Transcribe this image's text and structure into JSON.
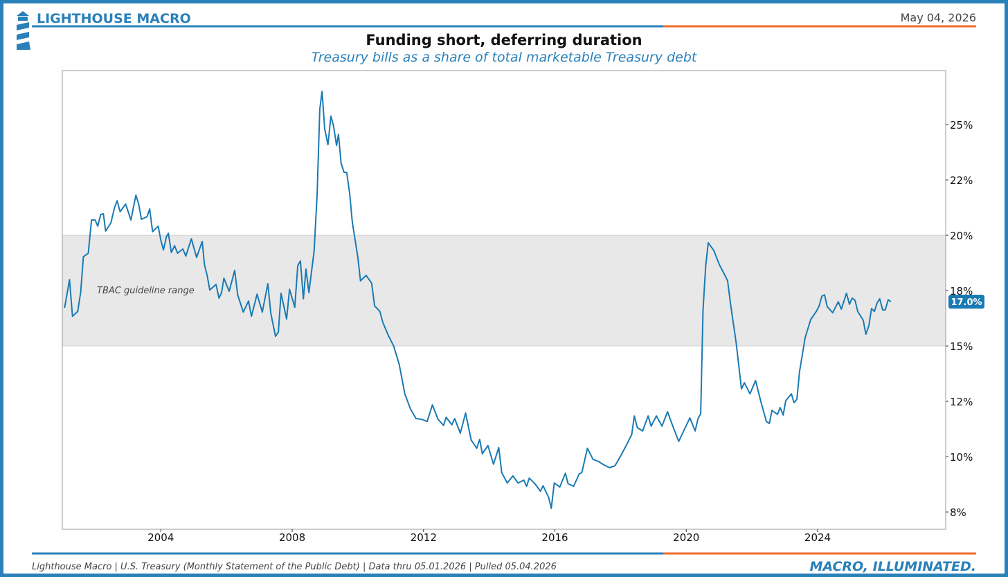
{
  "header": {
    "brand": "LIGHTHOUSE MACRO",
    "date": "May 04, 2026"
  },
  "footer": {
    "source": "Lighthouse Macro | U.S. Treasury (Monthly Statement of the Public Debt) | Data thru 05.01.2026 | Pulled 05.04.2026",
    "tagline": "MACRO, ILLUMINATED."
  },
  "chart_data": {
    "type": "line",
    "title": "Funding short, deferring duration",
    "subtitle": "Treasury bills as a share of total marketable Treasury debt",
    "color": "#1a7ab3",
    "band": {
      "from": 15,
      "to": 20,
      "label": "TBAC guideline range",
      "color": "#e8e8e8"
    },
    "x": [
      2001.07,
      2001.22,
      2001.31,
      2001.47,
      2001.56,
      2001.64,
      2001.79,
      2001.89,
      2002.0,
      2002.08,
      2002.17,
      2002.25,
      2002.32,
      2002.48,
      2002.59,
      2002.67,
      2002.76,
      2002.93,
      2003.09,
      2003.24,
      2003.33,
      2003.41,
      2003.58,
      2003.66,
      2003.75,
      2003.92,
      2004.0,
      2004.08,
      2004.17,
      2004.23,
      2004.32,
      2004.42,
      2004.51,
      2004.67,
      2004.76,
      2004.93,
      2005.09,
      2005.26,
      2005.33,
      2005.41,
      2005.49,
      2005.68,
      2005.77,
      2005.85,
      2005.92,
      2006.08,
      2006.25,
      2006.34,
      2006.51,
      2006.67,
      2006.76,
      2006.93,
      2007.09,
      2007.26,
      2007.35,
      2007.49,
      2007.58,
      2007.66,
      2007.83,
      2007.92,
      2008.08,
      2008.17,
      2008.25,
      2008.34,
      2008.42,
      2008.51,
      2008.67,
      2008.76,
      2008.84,
      2008.91,
      2008.99,
      2009.09,
      2009.18,
      2009.26,
      2009.35,
      2009.41,
      2009.49,
      2009.58,
      2009.66,
      2009.75,
      2009.83,
      2010.0,
      2010.08,
      2010.25,
      2010.42,
      2010.51,
      2010.67,
      2010.76,
      2010.93,
      2011.09,
      2011.26,
      2011.43,
      2011.6,
      2011.77,
      2011.94,
      2012.11,
      2012.27,
      2012.44,
      2012.61,
      2012.69,
      2012.86,
      2012.95,
      2013.12,
      2013.28,
      2013.45,
      2013.62,
      2013.71,
      2013.79,
      2013.96,
      2014.13,
      2014.29,
      2014.38,
      2014.55,
      2014.72,
      2014.88,
      2015.05,
      2015.14,
      2015.22,
      2015.39,
      2015.56,
      2015.64,
      2015.81,
      2015.89,
      2015.98,
      2016.15,
      2016.32,
      2016.4,
      2016.57,
      2016.74,
      2016.82,
      2016.99,
      2017.16,
      2017.33,
      2017.49,
      2017.66,
      2017.83,
      2018.0,
      2018.17,
      2018.34,
      2018.42,
      2018.51,
      2018.67,
      2018.84,
      2018.93,
      2019.09,
      2019.26,
      2019.43,
      2019.6,
      2019.77,
      2019.94,
      2020.11,
      2020.27,
      2020.36,
      2020.44,
      2020.51,
      2020.59,
      2020.67,
      2020.84,
      2021.01,
      2021.18,
      2021.26,
      2021.35,
      2021.52,
      2021.68,
      2021.77,
      2021.94,
      2022.11,
      2022.27,
      2022.44,
      2022.53,
      2022.61,
      2022.78,
      2022.86,
      2022.95,
      2023.03,
      2023.2,
      2023.28,
      2023.37,
      2023.45,
      2023.62,
      2023.79,
      2023.96,
      2024.04,
      2024.13,
      2024.21,
      2024.29,
      2024.46,
      2024.63,
      2024.72,
      2024.88,
      2024.97,
      2025.05,
      2025.14,
      2025.22,
      2025.39,
      2025.47,
      2025.56,
      2025.64,
      2025.73,
      2025.81,
      2025.89,
      2025.98,
      2026.06,
      2026.15,
      2026.23
    ],
    "values": [
      16.72,
      18.0,
      16.34,
      16.56,
      17.44,
      19.03,
      19.19,
      20.69,
      20.69,
      20.41,
      20.94,
      20.97,
      20.19,
      20.56,
      21.25,
      21.56,
      21.06,
      21.41,
      20.69,
      21.81,
      21.38,
      20.72,
      20.84,
      21.19,
      20.16,
      20.41,
      19.78,
      19.34,
      19.94,
      20.09,
      19.22,
      19.53,
      19.19,
      19.38,
      19.06,
      19.84,
      19.0,
      19.72,
      18.66,
      18.19,
      17.53,
      17.78,
      17.16,
      17.41,
      18.06,
      17.47,
      18.41,
      17.31,
      16.53,
      17.03,
      16.34,
      17.34,
      16.53,
      17.81,
      16.47,
      15.44,
      15.63,
      17.38,
      16.22,
      17.56,
      16.75,
      18.63,
      18.84,
      17.13,
      18.47,
      17.41,
      19.31,
      21.88,
      25.69,
      26.5,
      24.81,
      24.09,
      25.38,
      24.94,
      24.06,
      24.56,
      23.25,
      22.84,
      22.84,
      21.88,
      20.59,
      19.0,
      17.94,
      18.19,
      17.84,
      16.81,
      16.56,
      16.06,
      15.47,
      15.0,
      14.16,
      12.84,
      12.16,
      11.72,
      11.69,
      11.59,
      12.34,
      11.69,
      11.41,
      11.78,
      11.44,
      11.72,
      11.06,
      11.97,
      10.75,
      10.38,
      10.78,
      10.13,
      10.5,
      9.66,
      10.41,
      9.28,
      8.81,
      9.13,
      8.81,
      8.94,
      8.66,
      9.03,
      8.78,
      8.44,
      8.69,
      8.16,
      7.66,
      8.81,
      8.63,
      9.25,
      8.78,
      8.66,
      9.22,
      9.28,
      10.38,
      9.88,
      9.78,
      9.63,
      9.5,
      9.59,
      10.03,
      10.5,
      11.0,
      11.84,
      11.31,
      11.16,
      11.84,
      11.38,
      11.84,
      11.38,
      12.03,
      11.34,
      10.69,
      11.22,
      11.75,
      11.16,
      11.72,
      11.94,
      16.63,
      18.59,
      19.66,
      19.31,
      18.66,
      18.19,
      17.94,
      16.88,
      15.13,
      13.06,
      13.34,
      12.84,
      13.44,
      12.5,
      11.59,
      11.5,
      12.09,
      11.91,
      12.22,
      11.88,
      12.53,
      12.84,
      12.44,
      12.59,
      13.84,
      15.38,
      16.19,
      16.56,
      16.78,
      17.25,
      17.31,
      16.78,
      16.5,
      17.0,
      16.66,
      17.38,
      16.88,
      17.16,
      17.06,
      16.56,
      16.16,
      15.53,
      15.91,
      16.69,
      16.56,
      16.94,
      17.13,
      16.63,
      16.63,
      17.09,
      17.0
    ],
    "end_label": "17.0%",
    "xlim": [
      2001.0,
      2027.9
    ],
    "xticks": [
      2004,
      2008,
      2012,
      2016,
      2020,
      2024
    ],
    "ylim": [
      6.72,
      27.44
    ],
    "yticks": [
      {
        "value": 7.5,
        "label": "8%"
      },
      {
        "value": 10,
        "label": "10%"
      },
      {
        "value": 12.5,
        "label": "12%"
      },
      {
        "value": 15,
        "label": "15%"
      },
      {
        "value": 17.5,
        "label": "18%"
      },
      {
        "value": 20,
        "label": "20%"
      },
      {
        "value": 22.5,
        "label": "22%"
      },
      {
        "value": 25,
        "label": "25%"
      }
    ],
    "yaxis_side": "right",
    "grid": false
  }
}
